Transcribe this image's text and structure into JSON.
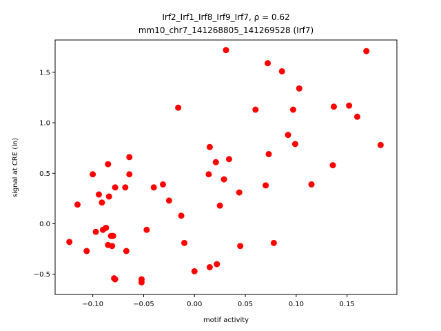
{
  "chart_data": {
    "type": "scatter",
    "title_line1": "Irf2_Irf1_Irf8_Irf9_Irf7, ρ = 0.62",
    "title_line2": "mm10_chr7_141268805_141269528 (Irf7)",
    "xlabel": "motif activity",
    "ylabel": "signal at CRE (ln)",
    "xlim": [
      -0.137,
      0.199
    ],
    "ylim": [
      -0.7,
      1.82
    ],
    "xticks": [
      {
        "value": -0.1,
        "label": "−0.10"
      },
      {
        "value": -0.05,
        "label": "−0.05"
      },
      {
        "value": 0.0,
        "label": "0.00"
      },
      {
        "value": 0.05,
        "label": "0.05"
      },
      {
        "value": 0.1,
        "label": "0.10"
      },
      {
        "value": 0.15,
        "label": "0.15"
      }
    ],
    "yticks": [
      {
        "value": -0.5,
        "label": "−0.5"
      },
      {
        "value": 0.0,
        "label": "0.0"
      },
      {
        "value": 0.5,
        "label": "0.5"
      },
      {
        "value": 1.0,
        "label": "1.0"
      },
      {
        "value": 1.5,
        "label": "1.5"
      }
    ],
    "grid": false,
    "marker_color": "#ff0000",
    "points": [
      {
        "x": -0.123,
        "y": -0.18
      },
      {
        "x": -0.115,
        "y": 0.19
      },
      {
        "x": -0.106,
        "y": -0.27
      },
      {
        "x": -0.1,
        "y": 0.49
      },
      {
        "x": -0.097,
        "y": -0.08
      },
      {
        "x": -0.094,
        "y": 0.29
      },
      {
        "x": -0.091,
        "y": 0.21
      },
      {
        "x": -0.09,
        "y": -0.06
      },
      {
        "x": -0.087,
        "y": -0.04
      },
      {
        "x": -0.085,
        "y": -0.21
      },
      {
        "x": -0.085,
        "y": 0.59
      },
      {
        "x": -0.084,
        "y": 0.27
      },
      {
        "x": -0.082,
        "y": -0.12
      },
      {
        "x": -0.081,
        "y": -0.22
      },
      {
        "x": -0.08,
        "y": -0.12
      },
      {
        "x": -0.079,
        "y": -0.54
      },
      {
        "x": -0.078,
        "y": -0.55
      },
      {
        "x": -0.078,
        "y": 0.36
      },
      {
        "x": -0.068,
        "y": 0.36
      },
      {
        "x": -0.067,
        "y": -0.27
      },
      {
        "x": -0.064,
        "y": 0.66
      },
      {
        "x": -0.064,
        "y": 0.49
      },
      {
        "x": -0.052,
        "y": -0.58
      },
      {
        "x": -0.052,
        "y": -0.55
      },
      {
        "x": -0.047,
        "y": -0.06
      },
      {
        "x": -0.04,
        "y": 0.36
      },
      {
        "x": -0.031,
        "y": 0.39
      },
      {
        "x": -0.025,
        "y": 0.23
      },
      {
        "x": -0.016,
        "y": 1.15
      },
      {
        "x": -0.013,
        "y": 0.08
      },
      {
        "x": -0.01,
        "y": -0.19
      },
      {
        "x": 0.0,
        "y": -0.47
      },
      {
        "x": 0.014,
        "y": 0.49
      },
      {
        "x": 0.015,
        "y": -0.43
      },
      {
        "x": 0.015,
        "y": 0.76
      },
      {
        "x": 0.021,
        "y": 0.61
      },
      {
        "x": 0.022,
        "y": -0.4
      },
      {
        "x": 0.025,
        "y": 0.18
      },
      {
        "x": 0.029,
        "y": 0.44
      },
      {
        "x": 0.031,
        "y": 1.72
      },
      {
        "x": 0.034,
        "y": 0.64
      },
      {
        "x": 0.044,
        "y": 0.31
      },
      {
        "x": 0.045,
        "y": -0.22
      },
      {
        "x": 0.06,
        "y": 1.13
      },
      {
        "x": 0.07,
        "y": 0.38
      },
      {
        "x": 0.072,
        "y": 1.59
      },
      {
        "x": 0.073,
        "y": 0.69
      },
      {
        "x": 0.078,
        "y": -0.19
      },
      {
        "x": 0.086,
        "y": 1.51
      },
      {
        "x": 0.092,
        "y": 0.88
      },
      {
        "x": 0.097,
        "y": 1.13
      },
      {
        "x": 0.099,
        "y": 0.79
      },
      {
        "x": 0.103,
        "y": 1.34
      },
      {
        "x": 0.115,
        "y": 0.39
      },
      {
        "x": 0.136,
        "y": 0.58
      },
      {
        "x": 0.137,
        "y": 1.16
      },
      {
        "x": 0.152,
        "y": 1.17
      },
      {
        "x": 0.16,
        "y": 1.06
      },
      {
        "x": 0.169,
        "y": 1.71
      },
      {
        "x": 0.183,
        "y": 0.78
      }
    ]
  }
}
